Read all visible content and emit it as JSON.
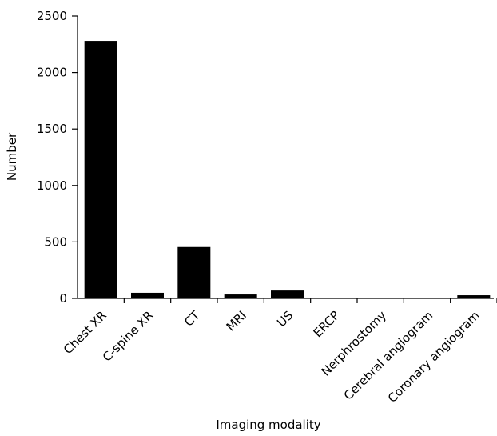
{
  "chart_data": {
    "type": "bar",
    "title": "",
    "xlabel": "Imaging modality",
    "ylabel": "Number",
    "categories": [
      "Chest XR",
      "C-spine XR",
      "CT",
      "MRI",
      "US",
      "ERCP",
      "Nerphrostomy",
      "Cerebral angiogram",
      "Coronary angiogram"
    ],
    "values": [
      2280,
      50,
      455,
      35,
      70,
      2,
      2,
      2,
      28
    ],
    "ylim": [
      0,
      2500
    ],
    "yticks": [
      "0",
      "500",
      "1000",
      "1500",
      "2000",
      "2500"
    ],
    "bar_color": "#000000",
    "grid": false
  }
}
